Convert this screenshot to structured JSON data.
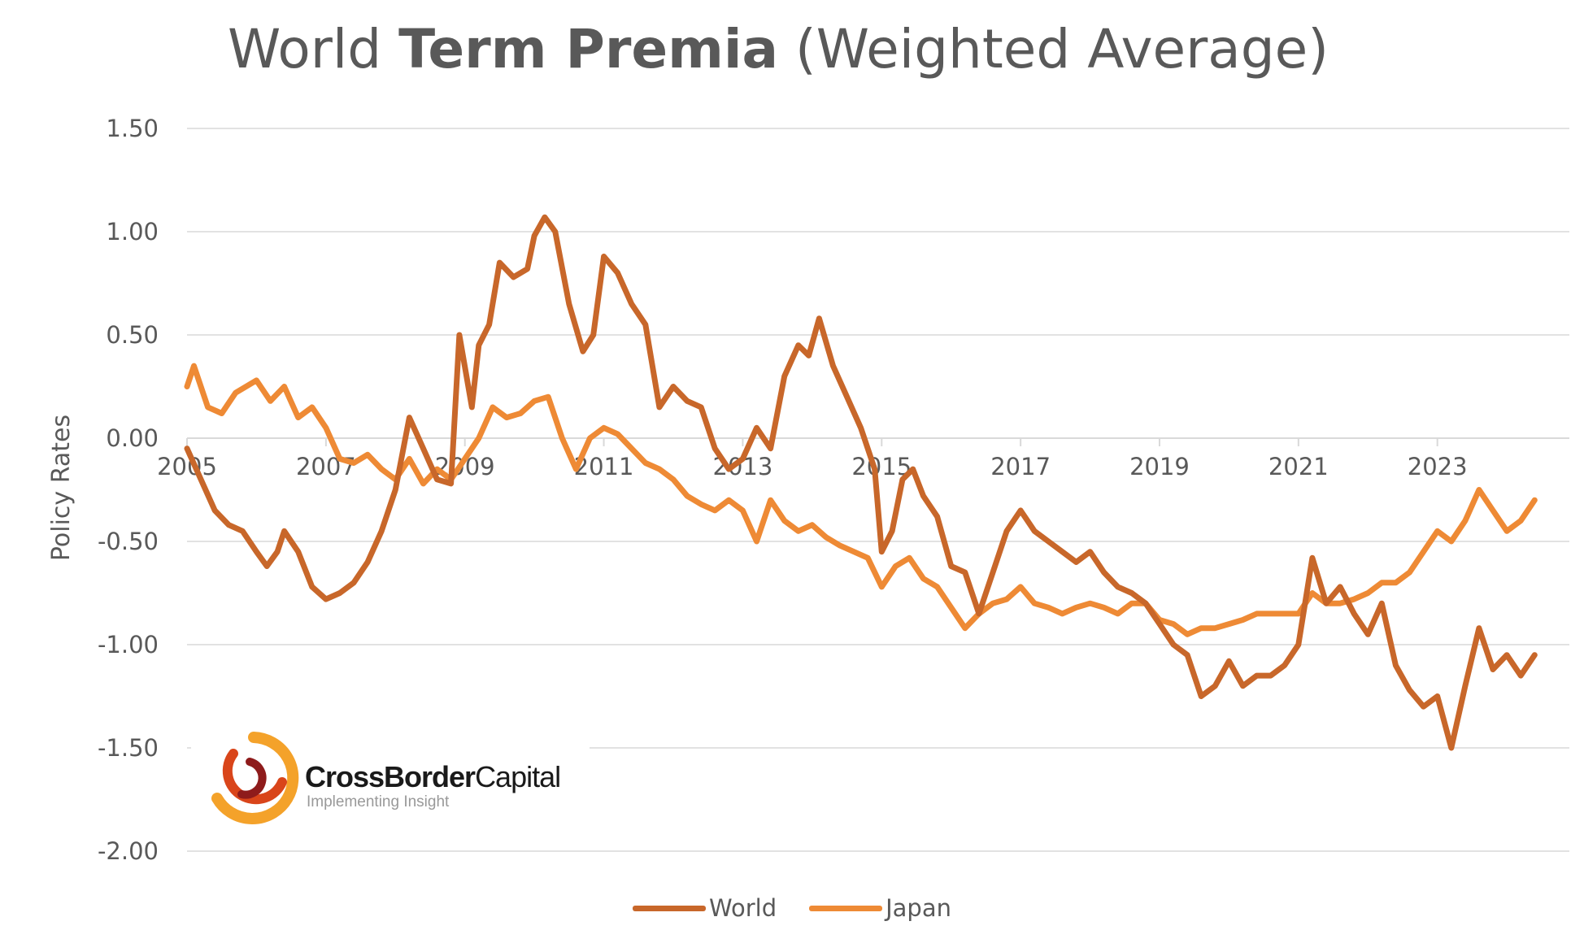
{
  "title": {
    "regular_1": "World ",
    "bold": "Term Premia",
    "regular_2": " (Weighted Average)"
  },
  "logo": {
    "name_bold": "CrossBorder",
    "name_regular": "Capital",
    "tagline": "Implementing Insight"
  },
  "colors": {
    "world": "#C8672A",
    "japan": "#EE8A35",
    "grid": "#D9D9D9",
    "text": "#595959"
  },
  "chart_data": {
    "type": "line",
    "title": "World Term Premia (Weighted Average)",
    "xlabel": "",
    "ylabel": "Policy Rates",
    "ylim": [
      -2.0,
      1.5
    ],
    "xlim": [
      2005,
      2024.9
    ],
    "y_ticks": [
      "1.50",
      "1.00",
      "0.50",
      "0.00",
      "-0.50",
      "-1.00",
      "-1.50",
      "-2.00"
    ],
    "x_ticks": [
      "2005",
      "2007",
      "2009",
      "2011",
      "2013",
      "2015",
      "2017",
      "2019",
      "2021",
      "2023"
    ],
    "grid": "horizontal",
    "legend": "bottom",
    "series": [
      {
        "name": "World",
        "x": [
          2005.0,
          2005.2,
          2005.4,
          2005.6,
          2005.8,
          2006.0,
          2006.15,
          2006.3,
          2006.4,
          2006.6,
          2006.8,
          2007.0,
          2007.2,
          2007.4,
          2007.6,
          2007.8,
          2008.0,
          2008.2,
          2008.4,
          2008.6,
          2008.8,
          2008.92,
          2009.1,
          2009.2,
          2009.35,
          2009.5,
          2009.7,
          2009.9,
          2010.0,
          2010.15,
          2010.3,
          2010.5,
          2010.7,
          2010.85,
          2011.0,
          2011.2,
          2011.4,
          2011.6,
          2011.8,
          2012.0,
          2012.2,
          2012.4,
          2012.6,
          2012.8,
          2013.0,
          2013.2,
          2013.4,
          2013.6,
          2013.8,
          2013.95,
          2014.1,
          2014.3,
          2014.5,
          2014.7,
          2014.9,
          2015.0,
          2015.15,
          2015.3,
          2015.45,
          2015.6,
          2015.8,
          2016.0,
          2016.2,
          2016.4,
          2016.6,
          2016.8,
          2017.0,
          2017.2,
          2017.4,
          2017.6,
          2017.8,
          2018.0,
          2018.2,
          2018.4,
          2018.6,
          2018.8,
          2019.0,
          2019.2,
          2019.4,
          2019.6,
          2019.8,
          2020.0,
          2020.2,
          2020.4,
          2020.6,
          2020.8,
          2021.0,
          2021.2,
          2021.4,
          2021.6,
          2021.8,
          2022.0,
          2022.2,
          2022.4,
          2022.6,
          2022.8,
          2023.0,
          2023.2,
          2023.4,
          2023.6,
          2023.8,
          2024.0,
          2024.2,
          2024.4
        ],
        "y": [
          -0.05,
          -0.2,
          -0.35,
          -0.42,
          -0.45,
          -0.55,
          -0.62,
          -0.55,
          -0.45,
          -0.55,
          -0.72,
          -0.78,
          -0.75,
          -0.7,
          -0.6,
          -0.45,
          -0.25,
          0.1,
          -0.05,
          -0.2,
          -0.22,
          0.5,
          0.15,
          0.45,
          0.55,
          0.85,
          0.78,
          0.82,
          0.98,
          1.07,
          1.0,
          0.65,
          0.42,
          0.5,
          0.88,
          0.8,
          0.65,
          0.55,
          0.15,
          0.25,
          0.18,
          0.15,
          -0.05,
          -0.15,
          -0.1,
          0.05,
          -0.05,
          0.3,
          0.45,
          0.4,
          0.58,
          0.35,
          0.2,
          0.05,
          -0.15,
          -0.55,
          -0.45,
          -0.2,
          -0.15,
          -0.28,
          -0.38,
          -0.62,
          -0.65,
          -0.85,
          -0.65,
          -0.45,
          -0.35,
          -0.45,
          -0.5,
          -0.55,
          -0.6,
          -0.55,
          -0.65,
          -0.72,
          -0.75,
          -0.8,
          -0.9,
          -1.0,
          -1.05,
          -1.25,
          -1.2,
          -1.08,
          -1.2,
          -1.15,
          -1.15,
          -1.1,
          -1.0,
          -0.58,
          -0.8,
          -0.72,
          -0.85,
          -0.95,
          -0.8,
          -1.1,
          -1.22,
          -1.3,
          -1.25,
          -1.5,
          -1.2,
          -0.92,
          -1.12,
          -1.05,
          -1.15,
          -1.05
        ],
        "color": "#C8672A"
      },
      {
        "name": "Japan",
        "x": [
          2005.0,
          2005.1,
          2005.3,
          2005.5,
          2005.7,
          2006.0,
          2006.2,
          2006.4,
          2006.6,
          2006.8,
          2007.0,
          2007.2,
          2007.4,
          2007.6,
          2007.8,
          2008.0,
          2008.2,
          2008.4,
          2008.6,
          2008.8,
          2009.0,
          2009.2,
          2009.4,
          2009.6,
          2009.8,
          2010.0,
          2010.2,
          2010.4,
          2010.6,
          2010.8,
          2011.0,
          2011.2,
          2011.4,
          2011.6,
          2011.8,
          2012.0,
          2012.2,
          2012.4,
          2012.6,
          2012.8,
          2013.0,
          2013.2,
          2013.4,
          2013.6,
          2013.8,
          2014.0,
          2014.2,
          2014.4,
          2014.6,
          2014.8,
          2015.0,
          2015.2,
          2015.4,
          2015.6,
          2015.8,
          2016.0,
          2016.2,
          2016.4,
          2016.6,
          2016.8,
          2017.0,
          2017.2,
          2017.4,
          2017.6,
          2017.8,
          2018.0,
          2018.2,
          2018.4,
          2018.6,
          2018.8,
          2019.0,
          2019.2,
          2019.4,
          2019.6,
          2019.8,
          2020.0,
          2020.2,
          2020.4,
          2020.6,
          2020.8,
          2021.0,
          2021.2,
          2021.4,
          2021.6,
          2021.8,
          2022.0,
          2022.2,
          2022.4,
          2022.6,
          2022.8,
          2023.0,
          2023.2,
          2023.4,
          2023.6,
          2023.8,
          2024.0,
          2024.2,
          2024.4
        ],
        "y": [
          0.25,
          0.35,
          0.15,
          0.12,
          0.22,
          0.28,
          0.18,
          0.25,
          0.1,
          0.15,
          0.05,
          -0.1,
          -0.12,
          -0.08,
          -0.15,
          -0.2,
          -0.1,
          -0.22,
          -0.15,
          -0.2,
          -0.1,
          0.0,
          0.15,
          0.1,
          0.12,
          0.18,
          0.2,
          0.0,
          -0.15,
          0.0,
          0.05,
          0.02,
          -0.05,
          -0.12,
          -0.15,
          -0.2,
          -0.28,
          -0.32,
          -0.35,
          -0.3,
          -0.35,
          -0.5,
          -0.3,
          -0.4,
          -0.45,
          -0.42,
          -0.48,
          -0.52,
          -0.55,
          -0.58,
          -0.72,
          -0.62,
          -0.58,
          -0.68,
          -0.72,
          -0.82,
          -0.92,
          -0.85,
          -0.8,
          -0.78,
          -0.72,
          -0.8,
          -0.82,
          -0.85,
          -0.82,
          -0.8,
          -0.82,
          -0.85,
          -0.8,
          -0.8,
          -0.88,
          -0.9,
          -0.95,
          -0.92,
          -0.92,
          -0.9,
          -0.88,
          -0.85,
          -0.85,
          -0.85,
          -0.85,
          -0.75,
          -0.8,
          -0.8,
          -0.78,
          -0.75,
          -0.7,
          -0.7,
          -0.65,
          -0.55,
          -0.45,
          -0.5,
          -0.4,
          -0.25,
          -0.35,
          -0.45,
          -0.4,
          -0.3
        ],
        "color": "#EE8A35"
      }
    ]
  }
}
